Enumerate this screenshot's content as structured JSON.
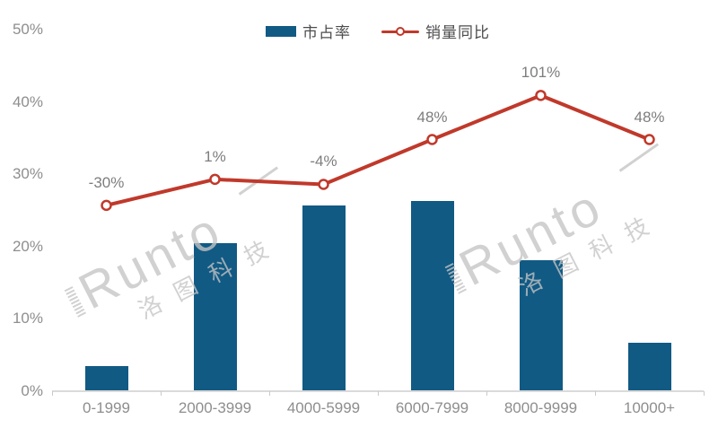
{
  "page": {
    "background": "#ffffff"
  },
  "legend": {
    "items": [
      {
        "label": "市占率",
        "type": "bar",
        "color": "#115a84"
      },
      {
        "label": "销量同比",
        "type": "line",
        "color": "#c0392b"
      }
    ]
  },
  "watermark": {
    "brand": "Runto",
    "chinese": "洛图科技",
    "color": "#c5c5c5"
  },
  "chart_data": {
    "type": "bar",
    "subtype": "bar+line-combo",
    "categories": [
      "0-1999",
      "2000-3999",
      "4000-5999",
      "6000-7999",
      "8000-9999",
      "10000+"
    ],
    "series": [
      {
        "name": "市占率",
        "type": "bar",
        "values": [
          3.3,
          20.4,
          25.5,
          26.2,
          18.0,
          6.6
        ],
        "color": "#115a84"
      },
      {
        "name": "销量同比",
        "type": "line",
        "values": [
          -30,
          1,
          -4,
          48,
          101,
          48
        ],
        "labels": [
          "-30%",
          "1%",
          "-4%",
          "48%",
          "101%",
          "48%"
        ],
        "plotted_left_axis_positions": [
          25.7,
          29.3,
          28.6,
          34.8,
          40.9,
          34.8
        ],
        "color": "#c0392b",
        "marker": "open-circle"
      }
    ],
    "title": "",
    "xlabel": "",
    "ylabel": "",
    "y_axis": {
      "min": 0,
      "max": 50,
      "tick_values": [
        0,
        10,
        20,
        30,
        40,
        50
      ],
      "tick_suffix": "%"
    },
    "grid": false,
    "legend_position": "top-center",
    "colors": {
      "axis_text": "#8e8e8e",
      "data_label_text": "#7d7d7d",
      "legend_text": "#4d4d4d",
      "axis_line": "#dadada"
    }
  }
}
